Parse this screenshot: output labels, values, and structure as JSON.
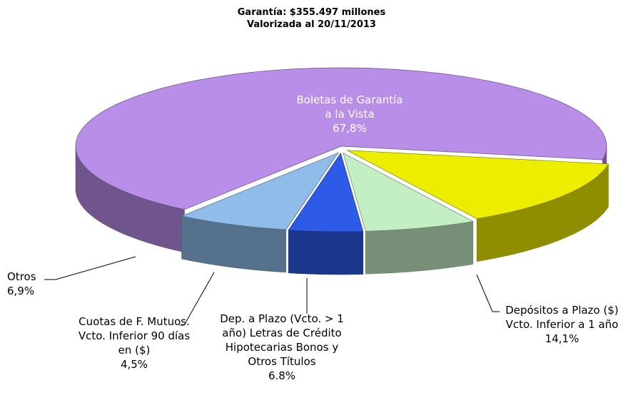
{
  "chart_data": {
    "type": "pie3d",
    "title": "Garantía: $355.497 millones",
    "subtitle": "Valorizada al 20/11/2013",
    "categories": [
      "Boletas de Garantía a la Vista",
      "Depósitos a Plazo ($) Vcto. Inferior a 1 año",
      "Dep. a Plazo (Vcto. > 1 año) Letras de Crédito Hipotecarias Bonos y Otros Títulos",
      "Cuotas de F. Mutuos. Vcto. Inferior 90 días en ($)",
      "Otros"
    ],
    "values": [
      67.8,
      14.1,
      6.8,
      4.5,
      6.9
    ],
    "value_labels": [
      "67,8%",
      "14,1%",
      "6.8%",
      "4,5%",
      "6,9%"
    ],
    "colors": [
      "#b98ee8",
      "#eded00",
      "#c4eec4",
      "#2d5be8",
      "#8fbce8"
    ]
  }
}
